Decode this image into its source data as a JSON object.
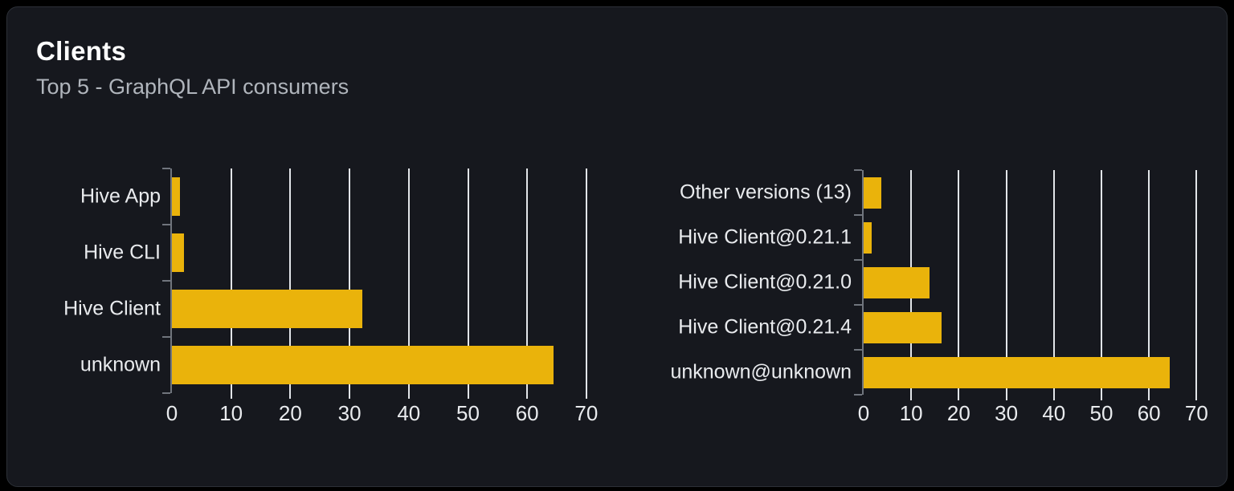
{
  "panel": {
    "title": "Clients",
    "subtitle": "Top 5 - GraphQL API consumers"
  },
  "colors": {
    "page_bg": "#000000",
    "card_bg": "#16181e",
    "card_border": "#2c3037",
    "title": "#ffffff",
    "subtitle": "#b0b5bc",
    "bar": "#eab30b",
    "gridline": "#e2e5e9",
    "axis": "#70757d",
    "label": "#e9ebee"
  },
  "chart_data": [
    {
      "type": "bar",
      "orientation": "horizontal",
      "title": "",
      "categories": [
        "Hive App",
        "Hive CLI",
        "Hive Client",
        "unknown"
      ],
      "values": [
        1.4,
        2.1,
        32.2,
        64.4
      ],
      "xlabel": "",
      "ylabel": "",
      "xlim": [
        0,
        70
      ],
      "xticks": [
        0,
        10,
        20,
        30,
        40,
        50,
        60,
        70
      ],
      "grid": true,
      "legend": false,
      "bar_color": "#eab30b"
    },
    {
      "type": "bar",
      "orientation": "horizontal",
      "title": "",
      "categories": [
        "Other versions (13)",
        "Hive Client@0.21.1",
        "Hive Client@0.21.0",
        "Hive Client@0.21.4",
        "unknown@unknown"
      ],
      "values": [
        3.7,
        1.7,
        13.8,
        16.4,
        64.4
      ],
      "xlabel": "",
      "ylabel": "",
      "xlim": [
        0,
        70
      ],
      "xticks": [
        0,
        10,
        20,
        30,
        40,
        50,
        60,
        70
      ],
      "grid": true,
      "legend": false,
      "bar_color": "#eab30b"
    }
  ]
}
